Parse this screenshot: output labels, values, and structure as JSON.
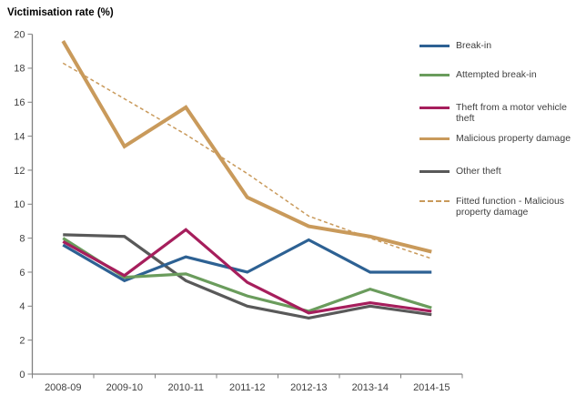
{
  "chart_data": {
    "type": "line",
    "title": "Victimisation rate (%)",
    "ylabel": "Victimisation rate (%)",
    "xlabel": "",
    "categories": [
      "2008-09",
      "2009-10",
      "2010-11",
      "2011-12",
      "2012-13",
      "2013-14",
      "2014-15"
    ],
    "ylim": [
      0,
      20
    ],
    "yticks": [
      0,
      2,
      4,
      6,
      8,
      10,
      12,
      14,
      16,
      18,
      20
    ],
    "grid": false,
    "legend_position": "right",
    "axis_color": "#808080",
    "tick_label_color": "#404040",
    "series": [
      {
        "name": "Break-in",
        "color": "#2D6193",
        "style": "solid",
        "values": [
          7.6,
          5.5,
          6.9,
          6.0,
          7.9,
          6.0,
          6.0
        ]
      },
      {
        "name": "Attempted break-in",
        "color": "#6A9C5C",
        "style": "solid",
        "values": [
          8.0,
          5.7,
          5.9,
          4.6,
          3.7,
          5.0,
          3.9
        ]
      },
      {
        "name": "Theft from a motor vehicle theft",
        "color": "#A61E5C",
        "style": "solid",
        "values": [
          7.8,
          5.8,
          8.5,
          5.4,
          3.6,
          4.2,
          3.7
        ]
      },
      {
        "name": "Malicious property damage",
        "color": "#C99A5B",
        "style": "solid",
        "thick": true,
        "values": [
          19.6,
          13.4,
          15.7,
          10.4,
          8.7,
          8.1,
          7.2
        ]
      },
      {
        "name": "Other theft",
        "color": "#595959",
        "style": "solid",
        "values": [
          8.2,
          8.1,
          5.5,
          4.0,
          3.3,
          4.0,
          3.5
        ]
      },
      {
        "name": "Fitted function - Malicious property damage",
        "color": "#C99A5B",
        "style": "dashed",
        "values": [
          18.3,
          16.2,
          14.1,
          11.8,
          9.3,
          8.0,
          6.8
        ]
      }
    ]
  }
}
